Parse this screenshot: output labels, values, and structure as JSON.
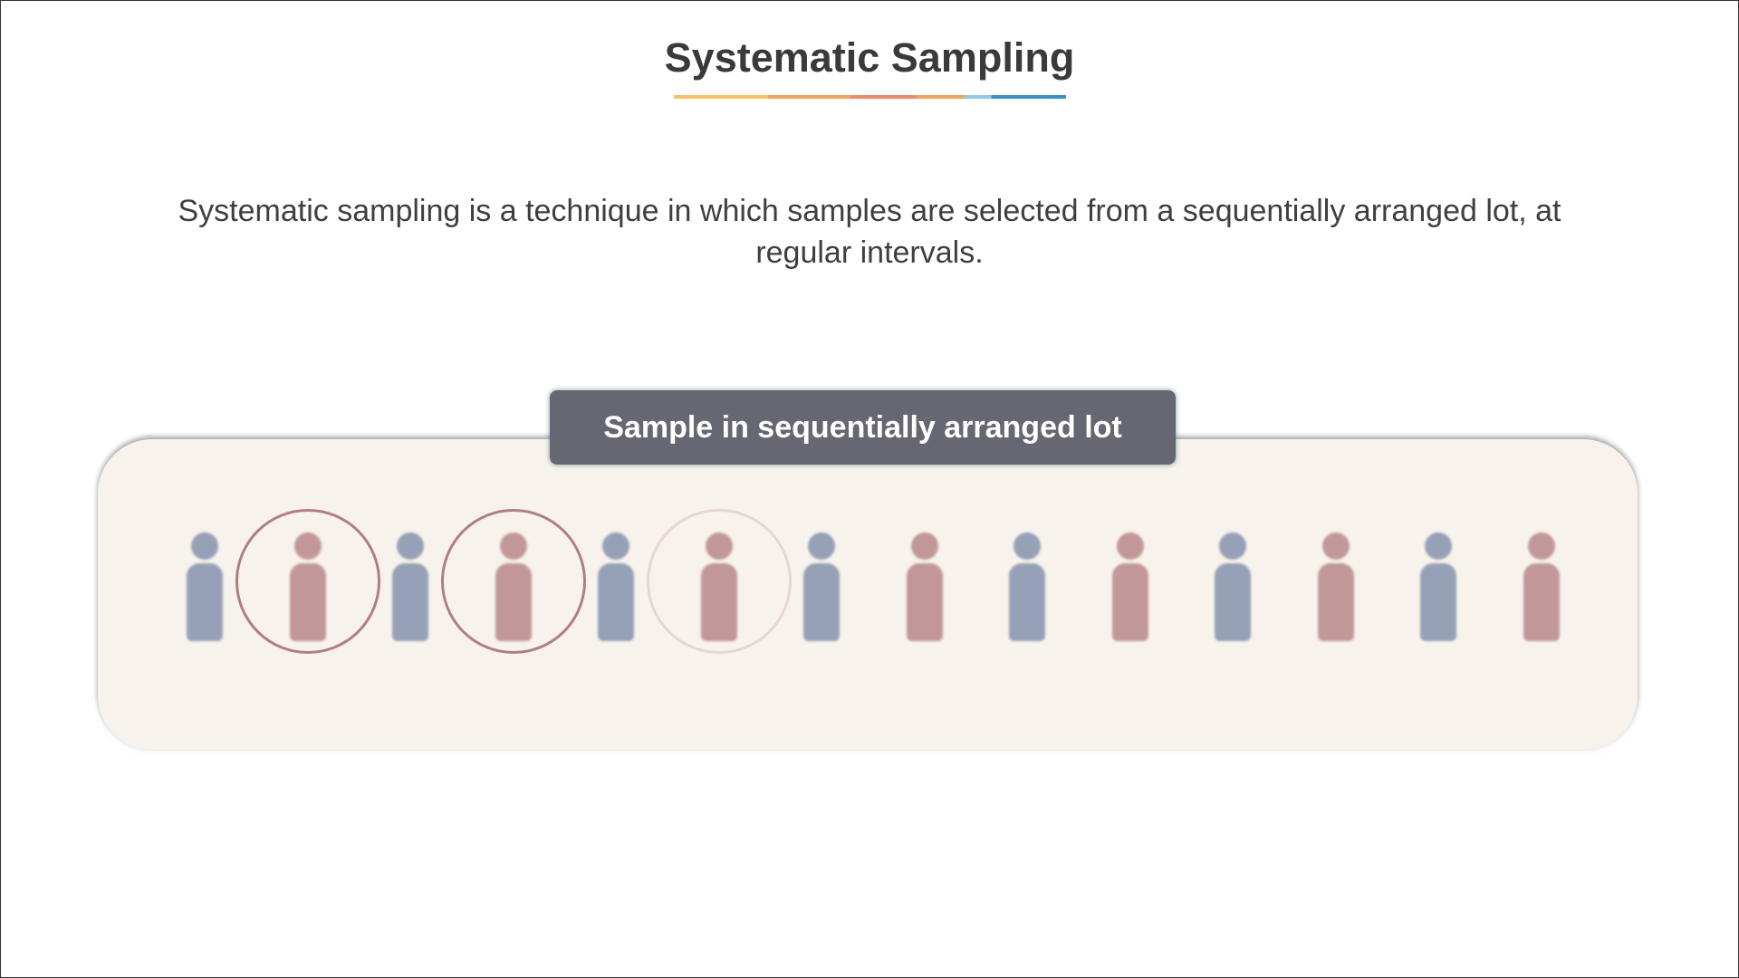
{
  "slide": {
    "title": "Systematic Sampling",
    "description": "Systematic sampling is a technique in which samples are selected from a sequentially arranged lot, at regular intervals."
  },
  "diagram": {
    "label": "Sample in sequentially arranged lot",
    "people": [
      {
        "color": "blue",
        "selected": false
      },
      {
        "color": "red",
        "selected": true,
        "ring_opacity": 1.0
      },
      {
        "color": "blue",
        "selected": false
      },
      {
        "color": "red",
        "selected": true,
        "ring_opacity": 1.0
      },
      {
        "color": "blue",
        "selected": false
      },
      {
        "color": "red",
        "selected": true,
        "ring_opacity": 0.25
      },
      {
        "color": "blue",
        "selected": false
      },
      {
        "color": "red",
        "selected": false
      },
      {
        "color": "blue",
        "selected": false
      },
      {
        "color": "red",
        "selected": false
      },
      {
        "color": "blue",
        "selected": false
      },
      {
        "color": "red",
        "selected": false
      },
      {
        "color": "blue",
        "selected": false
      },
      {
        "color": "red",
        "selected": false
      }
    ],
    "colors": {
      "blue": "#96a0b7",
      "red": "#c29799",
      "ring": "#b07e82",
      "label_bg": "#676673",
      "panel_bg": "#f7f3ec"
    }
  }
}
